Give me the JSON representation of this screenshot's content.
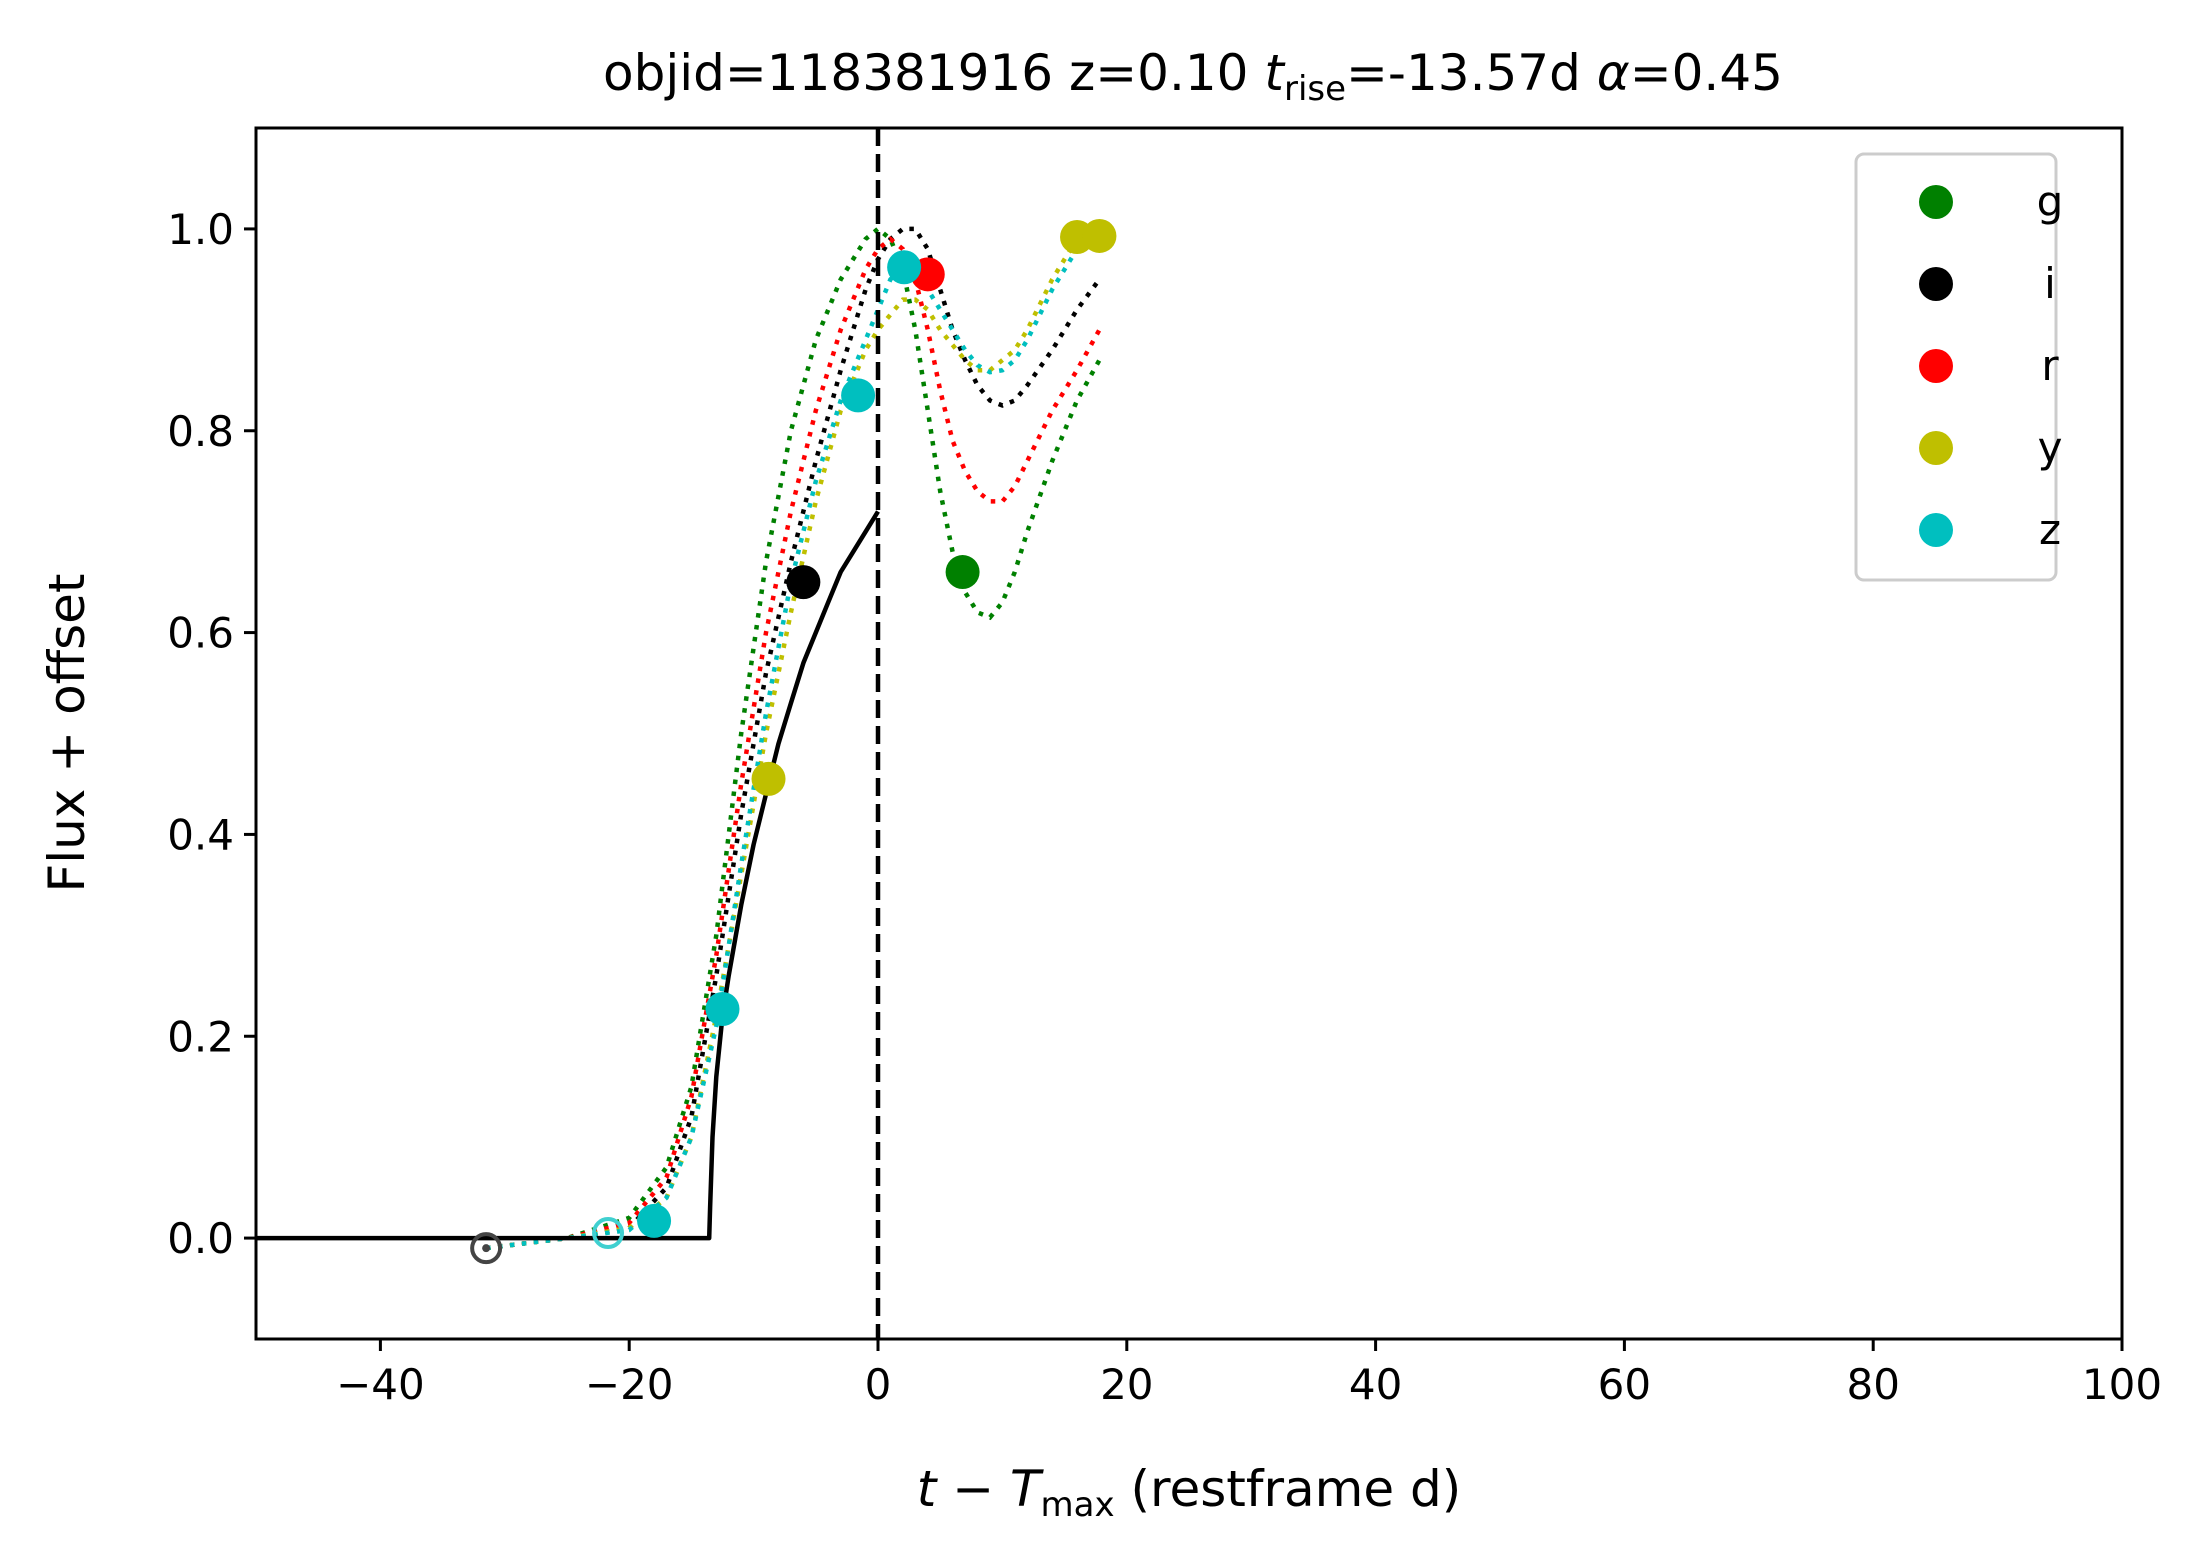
{
  "chart_data": {
    "type": "line",
    "title": {
      "pre": "objid=118381916  z=0.10  ",
      "t": "t",
      "t_sub": "rise",
      "mid": "=-13.57d  ",
      "alpha": "α",
      "post": "=0.45"
    },
    "xlabel": {
      "main": "t − T",
      "sub": "max",
      "post": " (restframe d)"
    },
    "ylabel": "Flux + offset",
    "xlim": [
      -50,
      100
    ],
    "ylim": [
      -0.1,
      1.1
    ],
    "xticks": [
      -40,
      -20,
      0,
      20,
      40,
      60,
      80,
      100
    ],
    "xtick_labels": [
      "−40",
      "−20",
      "0",
      "20",
      "40",
      "60",
      "80",
      "100"
    ],
    "yticks": [
      0.0,
      0.2,
      0.4,
      0.6,
      0.8,
      1.0
    ],
    "ytick_labels": [
      "0.0",
      "0.2",
      "0.4",
      "0.6",
      "0.8",
      "1.0"
    ],
    "vline_x": 0,
    "legend_position": "upper right",
    "model_fit": {
      "t_rise": -13.57,
      "alpha": 0.45,
      "points": [
        [
          -50,
          0.0
        ],
        [
          -13.57,
          0.0
        ],
        [
          -13.5,
          0.03
        ],
        [
          -13.3,
          0.1
        ],
        [
          -13.0,
          0.16
        ],
        [
          -12.5,
          0.22
        ],
        [
          -12.0,
          0.26
        ],
        [
          -11.0,
          0.33
        ],
        [
          -10.0,
          0.39
        ],
        [
          -9.0,
          0.44
        ],
        [
          -8.0,
          0.49
        ],
        [
          -7.0,
          0.53
        ],
        [
          -6.0,
          0.57
        ],
        [
          -5.0,
          0.6
        ],
        [
          -4.0,
          0.63
        ],
        [
          -3.0,
          0.66
        ],
        [
          -2.0,
          0.68
        ],
        [
          -1.0,
          0.7
        ],
        [
          0.0,
          0.72
        ]
      ]
    },
    "series": [
      {
        "name": "g",
        "color": "#008000",
        "points": [
          [
            6.8,
            0.66
          ]
        ],
        "curve": [
          [
            -31.5,
            -0.01
          ],
          [
            -25,
            0.0
          ],
          [
            -20,
            0.02
          ],
          [
            -17,
            0.07
          ],
          [
            -15,
            0.15
          ],
          [
            -13,
            0.3
          ],
          [
            -11,
            0.5
          ],
          [
            -9,
            0.67
          ],
          [
            -7,
            0.8
          ],
          [
            -5,
            0.89
          ],
          [
            -3,
            0.95
          ],
          [
            -1,
            0.99
          ],
          [
            0,
            1.0
          ],
          [
            1,
            0.99
          ],
          [
            2,
            0.96
          ],
          [
            3,
            0.9
          ],
          [
            4,
            0.82
          ],
          [
            5,
            0.74
          ],
          [
            6,
            0.68
          ],
          [
            7,
            0.64
          ],
          [
            8,
            0.62
          ],
          [
            9,
            0.615
          ],
          [
            10,
            0.63
          ],
          [
            11,
            0.66
          ],
          [
            12,
            0.7
          ],
          [
            14,
            0.77
          ],
          [
            16,
            0.83
          ],
          [
            17.8,
            0.87
          ]
        ]
      },
      {
        "name": "i",
        "color": "#000000",
        "points": [
          [
            -6.0,
            0.65
          ]
        ],
        "open_points": [
          [
            -31.5,
            -0.01
          ]
        ],
        "curve": [
          [
            -31.5,
            -0.01
          ],
          [
            -25,
            0.0
          ],
          [
            -20,
            0.01
          ],
          [
            -17,
            0.05
          ],
          [
            -15,
            0.12
          ],
          [
            -13,
            0.26
          ],
          [
            -11,
            0.42
          ],
          [
            -9,
            0.56
          ],
          [
            -7,
            0.67
          ],
          [
            -5,
            0.77
          ],
          [
            -3,
            0.86
          ],
          [
            -1,
            0.94
          ],
          [
            0,
            0.97
          ],
          [
            1,
            0.99
          ],
          [
            2,
            1.0
          ],
          [
            3,
            1.0
          ],
          [
            4,
            0.98
          ],
          [
            5,
            0.94
          ],
          [
            6,
            0.9
          ],
          [
            7,
            0.87
          ],
          [
            8,
            0.845
          ],
          [
            9,
            0.83
          ],
          [
            10,
            0.825
          ],
          [
            11,
            0.83
          ],
          [
            12,
            0.845
          ],
          [
            14,
            0.88
          ],
          [
            16,
            0.92
          ],
          [
            17.8,
            0.95
          ]
        ]
      },
      {
        "name": "r",
        "color": "#ff0000",
        "points": [
          [
            4.0,
            0.955
          ]
        ],
        "curve": [
          [
            -31.5,
            -0.01
          ],
          [
            -25,
            0.0
          ],
          [
            -20,
            0.015
          ],
          [
            -17,
            0.06
          ],
          [
            -15,
            0.14
          ],
          [
            -13,
            0.28
          ],
          [
            -11,
            0.45
          ],
          [
            -9,
            0.6
          ],
          [
            -7,
            0.72
          ],
          [
            -5,
            0.82
          ],
          [
            -3,
            0.9
          ],
          [
            -1,
            0.96
          ],
          [
            0,
            0.98
          ],
          [
            1,
            0.99
          ],
          [
            2,
            0.98
          ],
          [
            3,
            0.95
          ],
          [
            4,
            0.9
          ],
          [
            5,
            0.84
          ],
          [
            6,
            0.79
          ],
          [
            7,
            0.76
          ],
          [
            8,
            0.74
          ],
          [
            9,
            0.73
          ],
          [
            10,
            0.73
          ],
          [
            11,
            0.745
          ],
          [
            12,
            0.77
          ],
          [
            14,
            0.82
          ],
          [
            16,
            0.86
          ],
          [
            17.8,
            0.9
          ]
        ]
      },
      {
        "name": "y",
        "color": "#bfbf00",
        "points": [
          [
            -8.8,
            0.455
          ],
          [
            16.0,
            0.992
          ],
          [
            17.8,
            0.993
          ]
        ],
        "curve": [
          [
            -31.5,
            -0.01
          ],
          [
            -25,
            0.0
          ],
          [
            -20,
            0.01
          ],
          [
            -17,
            0.04
          ],
          [
            -15,
            0.1
          ],
          [
            -13,
            0.22
          ],
          [
            -11,
            0.36
          ],
          [
            -9,
            0.5
          ],
          [
            -7,
            0.62
          ],
          [
            -5,
            0.73
          ],
          [
            -3,
            0.82
          ],
          [
            -1,
            0.88
          ],
          [
            0,
            0.9
          ],
          [
            1,
            0.915
          ],
          [
            2,
            0.93
          ],
          [
            3,
            0.93
          ],
          [
            4,
            0.92
          ],
          [
            5,
            0.9
          ],
          [
            6,
            0.885
          ],
          [
            7,
            0.87
          ],
          [
            8,
            0.86
          ],
          [
            9,
            0.86
          ],
          [
            10,
            0.87
          ],
          [
            11,
            0.88
          ],
          [
            12,
            0.9
          ],
          [
            14,
            0.95
          ],
          [
            16,
            0.99
          ],
          [
            17.8,
            1.0
          ]
        ]
      },
      {
        "name": "z",
        "color": "#00bfbf",
        "points": [
          [
            -18.0,
            0.017
          ],
          [
            -12.5,
            0.227
          ],
          [
            -1.6,
            0.835
          ],
          [
            2.1,
            0.962
          ]
        ],
        "open_points": [
          [
            -21.7,
            0.005
          ]
        ],
        "curve": [
          [
            -31.5,
            -0.01
          ],
          [
            -25,
            0.0
          ],
          [
            -20,
            0.008
          ],
          [
            -17,
            0.04
          ],
          [
            -15,
            0.1
          ],
          [
            -13,
            0.21
          ],
          [
            -11,
            0.37
          ],
          [
            -9,
            0.52
          ],
          [
            -7,
            0.65
          ],
          [
            -5,
            0.75
          ],
          [
            -3,
            0.83
          ],
          [
            -1,
            0.89
          ],
          [
            0,
            0.92
          ],
          [
            1,
            0.95
          ],
          [
            2,
            0.962
          ],
          [
            3,
            0.955
          ],
          [
            4,
            0.94
          ],
          [
            5,
            0.92
          ],
          [
            6,
            0.9
          ],
          [
            7,
            0.88
          ],
          [
            8,
            0.865
          ],
          [
            9,
            0.858
          ],
          [
            10,
            0.86
          ],
          [
            11,
            0.87
          ],
          [
            12,
            0.89
          ],
          [
            14,
            0.94
          ],
          [
            16,
            0.98
          ],
          [
            17.8,
            0.99
          ]
        ]
      }
    ]
  }
}
